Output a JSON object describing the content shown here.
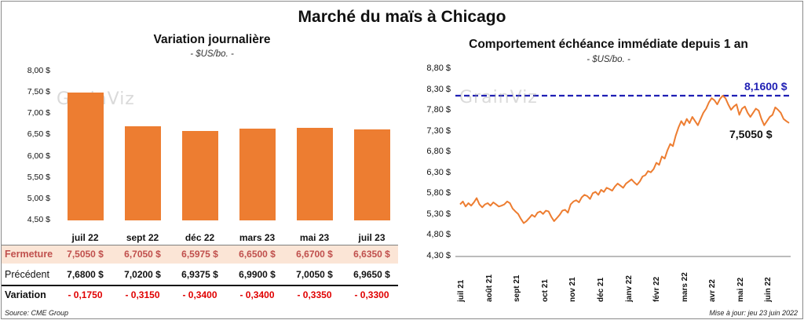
{
  "main_title": "Marché du maïs à Chicago",
  "chart_data": [
    {
      "type": "bar",
      "title": "Variation journalière",
      "unit": "- $US/bo. -",
      "categories": [
        "juil 22",
        "sept 22",
        "déc 22",
        "mars 23",
        "mai 23",
        "juil 23"
      ],
      "values": [
        7.505,
        6.705,
        6.5975,
        6.65,
        6.67,
        6.635
      ],
      "ylim": [
        4.5,
        8.0
      ],
      "yticks": [
        "8,00 $",
        "7,50 $",
        "7,00 $",
        "6,50 $",
        "6,00 $",
        "5,50 $",
        "5,00 $",
        "4,50 $"
      ],
      "bar_color": "#ed7d31",
      "table": {
        "rows": [
          {
            "label": "Fermeture",
            "values": [
              "7,5050  $",
              "6,7050  $",
              "6,5975  $",
              "6,6500  $",
              "6,6700  $",
              "6,6350  $"
            ],
            "color": "#c0504d",
            "bg": "#fbe5d6"
          },
          {
            "label": "Précédent",
            "values": [
              "7,6800  $",
              "7,0200  $",
              "6,9375  $",
              "6,9900  $",
              "7,0050  $",
              "6,9650  $"
            ],
            "color": "#111111",
            "bg": "#ffffff"
          },
          {
            "label": "Variation",
            "values": [
              "- 0,1750",
              "- 0,3150",
              "- 0,3400",
              "- 0,3400",
              "- 0,3350",
              "- 0,3300"
            ],
            "color": "#e00000",
            "bg": "#ffffff"
          }
        ]
      }
    },
    {
      "type": "line",
      "title": "Comportement  échéance immédiate depuis 1 an",
      "unit": "- $US/bo. -",
      "ylim": [
        4.3,
        8.8
      ],
      "yticks": [
        "8,80 $",
        "8,30 $",
        "7,80 $",
        "7,30 $",
        "6,80 $",
        "6,30 $",
        "5,80 $",
        "5,30 $",
        "4,80 $",
        "4,30 $"
      ],
      "xticks": [
        "juil 21",
        "août 21",
        "sept 21",
        "oct 21",
        "nov 21",
        "déc 21",
        "janv 22",
        "févr 22",
        "mars 22",
        "avr 22",
        "mai 22",
        "juin 22"
      ],
      "reference_line": {
        "value": 8.16,
        "label": "8,1600 $",
        "color": "#1f1fb4"
      },
      "last_label": "7,5050 $",
      "line_color": "#ed7d31",
      "series": [
        {
          "values": [
            5.55,
            5.62,
            5.5,
            5.58,
            5.52,
            5.6,
            5.7,
            5.55,
            5.48,
            5.55,
            5.58,
            5.52,
            5.6,
            5.55,
            5.5,
            5.52,
            5.55,
            5.62,
            5.58,
            5.45,
            5.38,
            5.32,
            5.2,
            5.1,
            5.15,
            5.22,
            5.3,
            5.25,
            5.35,
            5.38,
            5.32,
            5.4,
            5.38,
            5.25,
            5.15,
            5.22,
            5.3,
            5.4,
            5.42,
            5.35,
            5.55,
            5.62,
            5.65,
            5.6,
            5.72,
            5.78,
            5.75,
            5.68,
            5.82,
            5.85,
            5.78,
            5.9,
            5.85,
            5.95,
            5.92,
            5.88,
            5.98,
            6.05,
            6.0,
            5.95,
            6.05,
            6.1,
            6.15,
            6.08,
            6.02,
            6.1,
            6.22,
            6.25,
            6.35,
            6.32,
            6.4,
            6.55,
            6.5,
            6.7,
            6.65,
            6.85,
            7.0,
            6.95,
            7.2,
            7.4,
            7.55,
            7.45,
            7.6,
            7.5,
            7.65,
            7.55,
            7.45,
            7.6,
            7.75,
            7.85,
            8.0,
            8.1,
            8.05,
            7.95,
            8.08,
            8.16,
            8.1,
            7.95,
            7.82,
            7.9,
            7.95,
            7.7,
            7.85,
            7.9,
            7.75,
            7.65,
            7.75,
            7.85,
            7.8,
            7.6,
            7.45,
            7.55,
            7.65,
            7.7,
            7.88,
            7.82,
            7.75,
            7.6,
            7.55,
            7.505
          ]
        }
      ]
    }
  ],
  "footer": {
    "source": "Source: CME Group",
    "updated": "Mise à jour: jeu 23 juin 2022"
  },
  "watermark": "GrainViz"
}
